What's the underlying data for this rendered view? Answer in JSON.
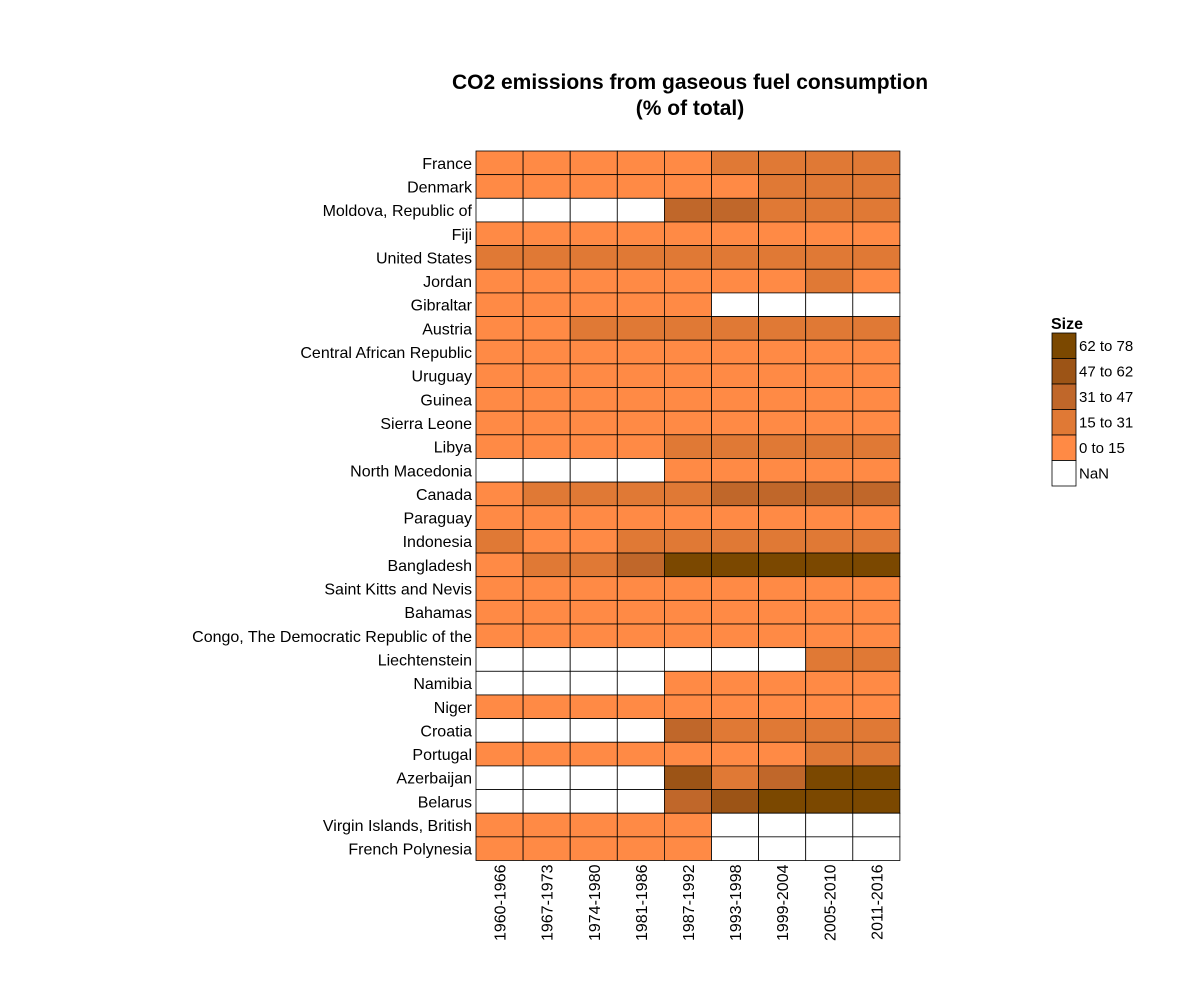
{
  "chart_data": {
    "type": "heatmap",
    "title_line1": "CO2 emissions from gaseous fuel consumption",
    "title_line2": "(% of total)",
    "x_labels": [
      "1960-1966",
      "1967-1973",
      "1974-1980",
      "1981-1986",
      "1987-1992",
      "1993-1998",
      "1999-2004",
      "2005-2010",
      "2011-2016"
    ],
    "y_labels": [
      "France",
      "Denmark",
      "Moldova, Republic of",
      "Fiji",
      "United States",
      "Jordan",
      "Gibraltar",
      "Austria",
      "Central African Republic",
      "Uruguay",
      "Guinea",
      "Sierra Leone",
      "Libya",
      "North Macedonia",
      "Canada",
      "Paraguay",
      "Indonesia",
      "Bangladesh",
      "Saint Kitts and Nevis",
      "Bahamas",
      "Congo, The Democratic Republic of the",
      "Liechtenstein",
      "Namibia",
      "Niger",
      "Croatia",
      "Portugal",
      "Azerbaijan",
      "Belarus",
      "Virgin Islands, British",
      "French Polynesia"
    ],
    "bins": [
      {
        "label": "62 to 78",
        "color": "#7b4800"
      },
      {
        "label": "47 to 62",
        "color": "#9c5416"
      },
      {
        "label": "31 to 47",
        "color": "#c0672a"
      },
      {
        "label": "15 to 31",
        "color": "#e07935"
      },
      {
        "label": "0 to 15",
        "color": "#ff8a45"
      },
      {
        "label": "NaN",
        "color": "#ffffff"
      }
    ],
    "legend_title": "Size",
    "legend_position": "right",
    "cell_bins": [
      [
        "0 to 15",
        "0 to 15",
        "0 to 15",
        "0 to 15",
        "0 to 15",
        "15 to 31",
        "15 to 31",
        "15 to 31",
        "15 to 31"
      ],
      [
        "0 to 15",
        "0 to 15",
        "0 to 15",
        "0 to 15",
        "0 to 15",
        "0 to 15",
        "15 to 31",
        "15 to 31",
        "15 to 31"
      ],
      [
        "NaN",
        "NaN",
        "NaN",
        "NaN",
        "31 to 47",
        "31 to 47",
        "15 to 31",
        "15 to 31",
        "15 to 31"
      ],
      [
        "0 to 15",
        "0 to 15",
        "0 to 15",
        "0 to 15",
        "0 to 15",
        "0 to 15",
        "0 to 15",
        "0 to 15",
        "0 to 15"
      ],
      [
        "15 to 31",
        "15 to 31",
        "15 to 31",
        "15 to 31",
        "15 to 31",
        "15 to 31",
        "15 to 31",
        "15 to 31",
        "15 to 31"
      ],
      [
        "0 to 15",
        "0 to 15",
        "0 to 15",
        "0 to 15",
        "0 to 15",
        "0 to 15",
        "0 to 15",
        "15 to 31",
        "0 to 15"
      ],
      [
        "0 to 15",
        "0 to 15",
        "0 to 15",
        "0 to 15",
        "0 to 15",
        "NaN",
        "NaN",
        "NaN",
        "NaN"
      ],
      [
        "0 to 15",
        "0 to 15",
        "15 to 31",
        "15 to 31",
        "15 to 31",
        "15 to 31",
        "15 to 31",
        "15 to 31",
        "15 to 31"
      ],
      [
        "0 to 15",
        "0 to 15",
        "0 to 15",
        "0 to 15",
        "0 to 15",
        "0 to 15",
        "0 to 15",
        "0 to 15",
        "0 to 15"
      ],
      [
        "0 to 15",
        "0 to 15",
        "0 to 15",
        "0 to 15",
        "0 to 15",
        "0 to 15",
        "0 to 15",
        "0 to 15",
        "0 to 15"
      ],
      [
        "0 to 15",
        "0 to 15",
        "0 to 15",
        "0 to 15",
        "0 to 15",
        "0 to 15",
        "0 to 15",
        "0 to 15",
        "0 to 15"
      ],
      [
        "0 to 15",
        "0 to 15",
        "0 to 15",
        "0 to 15",
        "0 to 15",
        "0 to 15",
        "0 to 15",
        "0 to 15",
        "0 to 15"
      ],
      [
        "0 to 15",
        "0 to 15",
        "0 to 15",
        "0 to 15",
        "15 to 31",
        "15 to 31",
        "15 to 31",
        "15 to 31",
        "15 to 31"
      ],
      [
        "NaN",
        "NaN",
        "NaN",
        "NaN",
        "0 to 15",
        "0 to 15",
        "0 to 15",
        "0 to 15",
        "0 to 15"
      ],
      [
        "0 to 15",
        "15 to 31",
        "15 to 31",
        "15 to 31",
        "15 to 31",
        "31 to 47",
        "31 to 47",
        "31 to 47",
        "31 to 47"
      ],
      [
        "0 to 15",
        "0 to 15",
        "0 to 15",
        "0 to 15",
        "0 to 15",
        "0 to 15",
        "0 to 15",
        "0 to 15",
        "0 to 15"
      ],
      [
        "15 to 31",
        "0 to 15",
        "0 to 15",
        "15 to 31",
        "15 to 31",
        "15 to 31",
        "15 to 31",
        "15 to 31",
        "15 to 31"
      ],
      [
        "0 to 15",
        "15 to 31",
        "15 to 31",
        "31 to 47",
        "62 to 78",
        "62 to 78",
        "62 to 78",
        "62 to 78",
        "62 to 78"
      ],
      [
        "0 to 15",
        "0 to 15",
        "0 to 15",
        "0 to 15",
        "0 to 15",
        "0 to 15",
        "0 to 15",
        "0 to 15",
        "0 to 15"
      ],
      [
        "0 to 15",
        "0 to 15",
        "0 to 15",
        "0 to 15",
        "0 to 15",
        "0 to 15",
        "0 to 15",
        "0 to 15",
        "0 to 15"
      ],
      [
        "0 to 15",
        "0 to 15",
        "0 to 15",
        "0 to 15",
        "0 to 15",
        "0 to 15",
        "0 to 15",
        "0 to 15",
        "0 to 15"
      ],
      [
        "NaN",
        "NaN",
        "NaN",
        "NaN",
        "NaN",
        "NaN",
        "NaN",
        "15 to 31",
        "15 to 31"
      ],
      [
        "NaN",
        "NaN",
        "NaN",
        "NaN",
        "0 to 15",
        "0 to 15",
        "0 to 15",
        "0 to 15",
        "0 to 15"
      ],
      [
        "0 to 15",
        "0 to 15",
        "0 to 15",
        "0 to 15",
        "0 to 15",
        "0 to 15",
        "0 to 15",
        "0 to 15",
        "0 to 15"
      ],
      [
        "NaN",
        "NaN",
        "NaN",
        "NaN",
        "31 to 47",
        "15 to 31",
        "15 to 31",
        "15 to 31",
        "15 to 31"
      ],
      [
        "0 to 15",
        "0 to 15",
        "0 to 15",
        "0 to 15",
        "0 to 15",
        "0 to 15",
        "0 to 15",
        "15 to 31",
        "15 to 31"
      ],
      [
        "NaN",
        "NaN",
        "NaN",
        "NaN",
        "47 to 62",
        "15 to 31",
        "31 to 47",
        "62 to 78",
        "62 to 78"
      ],
      [
        "NaN",
        "NaN",
        "NaN",
        "NaN",
        "31 to 47",
        "47 to 62",
        "62 to 78",
        "62 to 78",
        "62 to 78"
      ],
      [
        "0 to 15",
        "0 to 15",
        "0 to 15",
        "0 to 15",
        "0 to 15",
        "NaN",
        "NaN",
        "NaN",
        "NaN"
      ],
      [
        "0 to 15",
        "0 to 15",
        "0 to 15",
        "0 to 15",
        "0 to 15",
        "NaN",
        "NaN",
        "NaN",
        "NaN"
      ]
    ]
  }
}
